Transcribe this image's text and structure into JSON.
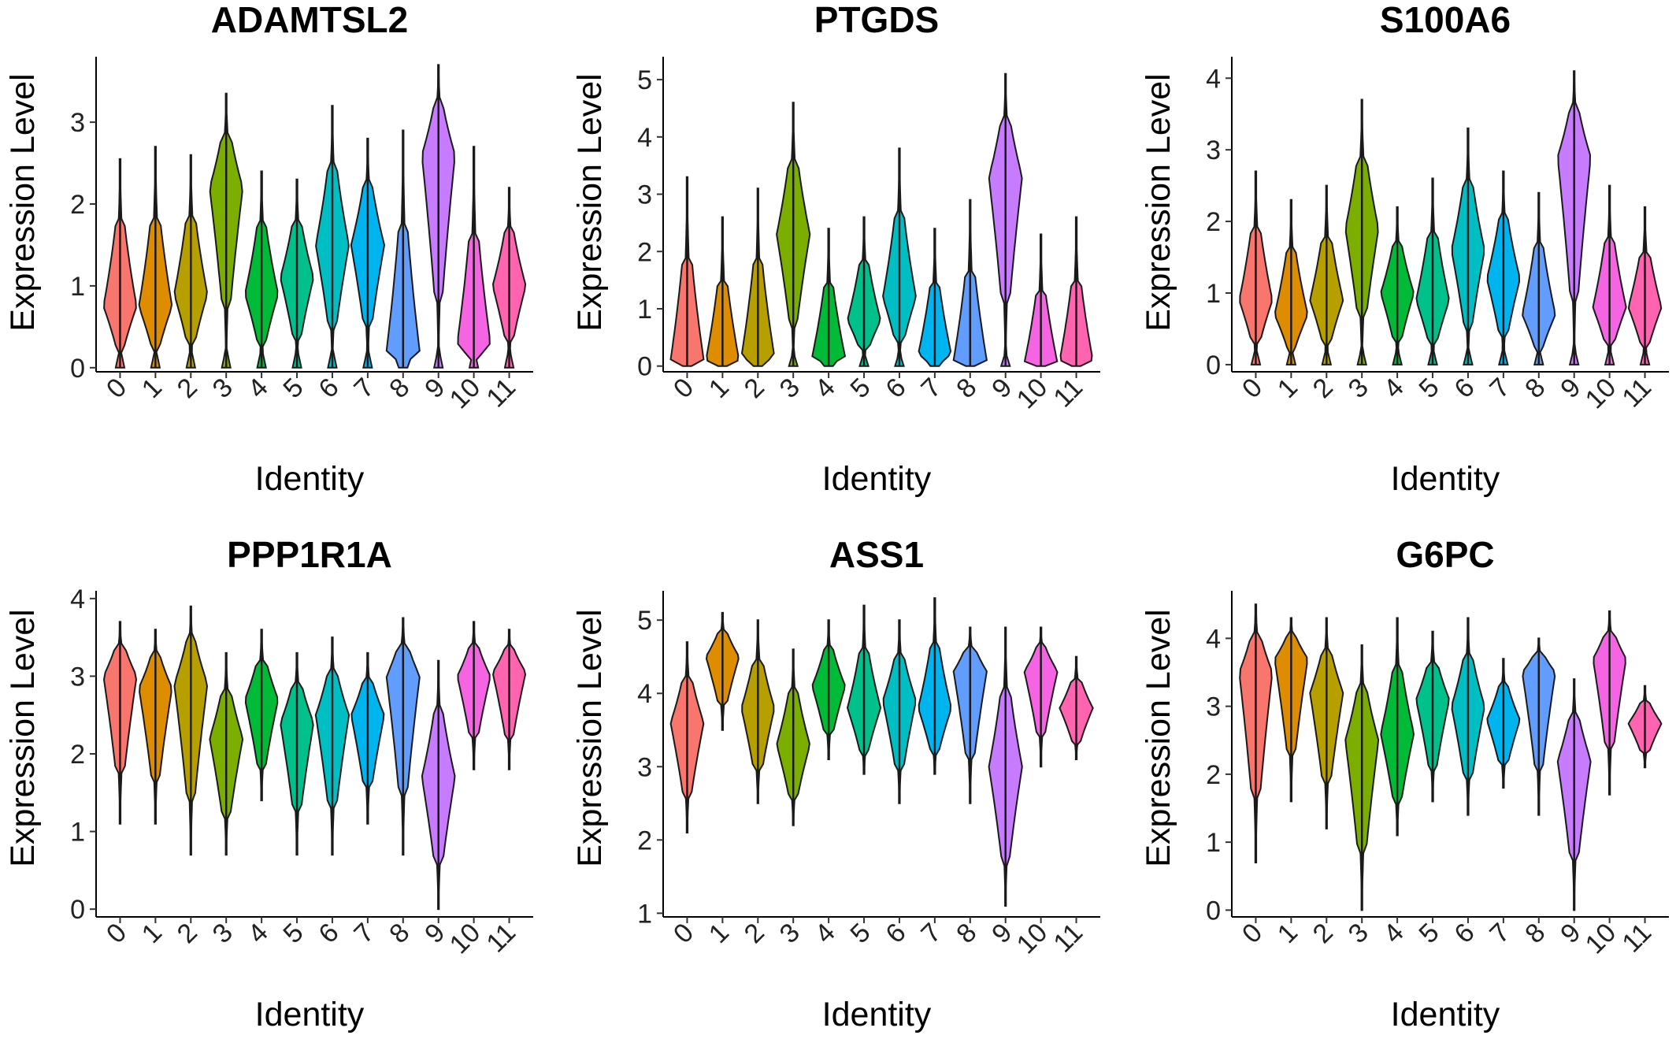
{
  "figure_type": "violin plot grid",
  "chart_data": [
    {
      "type": "violin",
      "title": "ADAMTSL2",
      "xlabel": "Identity",
      "ylabel": "Expression Level",
      "categories": [
        "0",
        "1",
        "2",
        "3",
        "4",
        "5",
        "6",
        "7",
        "8",
        "9",
        "10",
        "11"
      ],
      "yticks": [
        0,
        1,
        2,
        3
      ],
      "ylim": [
        -0.05,
        3.8
      ],
      "range_max": [
        2.55,
        2.7,
        2.6,
        3.35,
        2.4,
        2.3,
        3.2,
        2.8,
        2.9,
        3.7,
        2.7,
        2.2
      ],
      "peak": [
        0.75,
        0.75,
        0.9,
        2.2,
        0.9,
        1.1,
        1.5,
        1.5,
        0.2,
        2.6,
        0.3,
        1.0
      ]
    },
    {
      "type": "violin",
      "title": "PTGDS",
      "xlabel": "Identity",
      "ylabel": "Expression Level",
      "categories": [
        "0",
        "1",
        "2",
        "3",
        "4",
        "5",
        "6",
        "7",
        "8",
        "9",
        "10",
        "11"
      ],
      "yticks": [
        0,
        1,
        2,
        3,
        4,
        5
      ],
      "ylim": [
        -0.1,
        5.4
      ],
      "range_max": [
        3.3,
        2.6,
        3.1,
        4.6,
        2.4,
        2.6,
        3.8,
        2.4,
        2.9,
        5.1,
        2.3,
        2.6
      ],
      "peak": [
        0.1,
        0.1,
        0.15,
        2.3,
        0.15,
        0.8,
        1.2,
        0.2,
        0.1,
        3.3,
        0.05,
        0.1
      ]
    },
    {
      "type": "violin",
      "title": "S100A6",
      "xlabel": "Identity",
      "ylabel": "Expression Level",
      "categories": [
        "0",
        "1",
        "2",
        "3",
        "4",
        "5",
        "6",
        "7",
        "8",
        "9",
        "10",
        "11"
      ],
      "yticks": [
        0,
        1,
        2,
        3,
        4
      ],
      "ylim": [
        -0.1,
        4.3
      ],
      "range_max": [
        2.7,
        2.3,
        2.5,
        3.7,
        2.2,
        2.6,
        3.3,
        2.7,
        2.4,
        4.1,
        2.5,
        2.2
      ],
      "peak": [
        0.9,
        0.7,
        0.9,
        1.9,
        1.0,
        0.9,
        1.6,
        1.2,
        0.7,
        2.9,
        0.8,
        0.8
      ]
    },
    {
      "type": "violin",
      "title": "PPP1R1A",
      "xlabel": "Identity",
      "ylabel": "Expression Level",
      "categories": [
        "0",
        "1",
        "2",
        "3",
        "4",
        "5",
        "6",
        "7",
        "8",
        "9",
        "10",
        "11"
      ],
      "yticks": [
        0,
        1,
        2,
        3,
        4
      ],
      "ylim": [
        -0.1,
        4.1
      ],
      "range_min": [
        1.1,
        1.1,
        0.7,
        0.7,
        1.4,
        0.7,
        0.7,
        1.1,
        0.7,
        0.0,
        1.8,
        1.8
      ],
      "range_max": [
        3.7,
        3.6,
        3.9,
        3.3,
        3.6,
        3.3,
        3.5,
        3.3,
        3.75,
        3.2,
        3.7,
        3.6
      ],
      "peak": [
        3.0,
        2.85,
        2.9,
        2.2,
        2.7,
        2.4,
        2.5,
        2.5,
        3.0,
        1.7,
        3.0,
        3.05
      ]
    },
    {
      "type": "violin",
      "title": "ASS1",
      "xlabel": "Identity",
      "ylabel": "Expression Level",
      "categories": [
        "0",
        "1",
        "2",
        "3",
        "4",
        "5",
        "6",
        "7",
        "8",
        "9",
        "10",
        "11"
      ],
      "yticks": [
        1,
        2,
        3,
        4,
        5
      ],
      "ylim": [
        0.95,
        5.4
      ],
      "range_min": [
        2.1,
        3.5,
        2.5,
        2.2,
        3.1,
        2.9,
        2.5,
        2.9,
        2.5,
        1.1,
        3.0,
        3.1
      ],
      "range_max": [
        4.7,
        5.1,
        5.0,
        4.6,
        5.0,
        5.2,
        5.0,
        5.3,
        4.9,
        4.9,
        4.9,
        4.5
      ],
      "peak": [
        3.6,
        4.5,
        3.8,
        3.3,
        4.1,
        3.8,
        3.9,
        3.8,
        4.3,
        3.0,
        4.3,
        3.8
      ]
    },
    {
      "type": "violin",
      "title": "G6PC",
      "xlabel": "Identity",
      "ylabel": "Expression Level",
      "categories": [
        "0",
        "1",
        "2",
        "3",
        "4",
        "5",
        "6",
        "7",
        "8",
        "9",
        "10",
        "11"
      ],
      "yticks": [
        0,
        1,
        2,
        3,
        4
      ],
      "ylim": [
        -0.1,
        4.7
      ],
      "range_min": [
        0.7,
        1.6,
        1.2,
        0.0,
        1.1,
        1.6,
        1.4,
        1.8,
        1.4,
        0.0,
        1.7,
        2.1
      ],
      "range_max": [
        4.5,
        4.3,
        4.3,
        3.9,
        4.3,
        4.1,
        4.3,
        3.7,
        4.0,
        3.4,
        4.4,
        3.3
      ],
      "peak": [
        3.5,
        3.7,
        3.2,
        2.5,
        2.6,
        3.1,
        3.0,
        2.8,
        3.5,
        2.2,
        3.7,
        2.75
      ]
    }
  ],
  "colors": [
    "#F8766D",
    "#DE8C00",
    "#B79F00",
    "#7CAE00",
    "#00BA38",
    "#00C08B",
    "#00BFC4",
    "#00B4F0",
    "#619CFF",
    "#C77CFF",
    "#F564E3",
    "#FF64B0"
  ]
}
